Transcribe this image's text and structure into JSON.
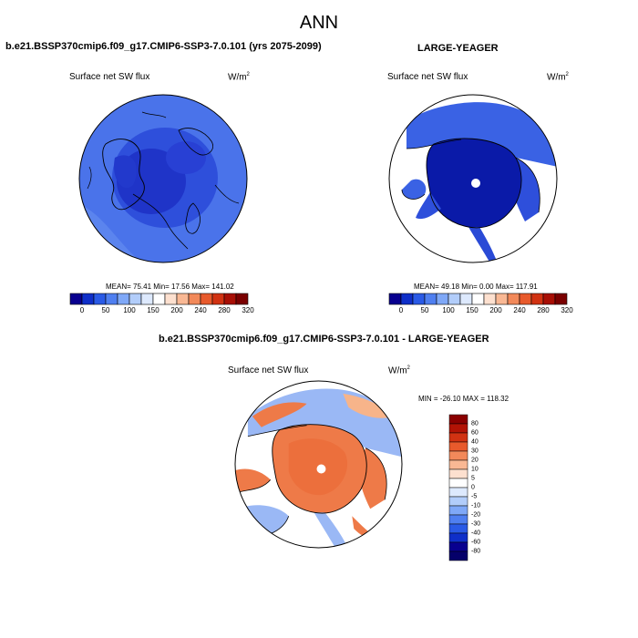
{
  "figure": {
    "season": "ANN",
    "top_left_title": "b.e21.BSSP370cmip6.f09_g17.CMIP6-SSP3-7.0.101 (yrs 2075-2099)",
    "top_right_title": "LARGE-YEAGER",
    "bottom_title": "b.e21.BSSP370cmip6.f09_g17.CMIP6-SSP3-7.0.101 - LARGE-YEAGER"
  },
  "panels": {
    "left": {
      "variable": "Surface net SW flux",
      "units": "W/m",
      "units_sup": "2",
      "stats": "MEAN=  75.41  Min=  17.56  Max= 141.02"
    },
    "right": {
      "variable": "Surface net SW flux",
      "units": "W/m",
      "units_sup": "2",
      "stats": "MEAN=  49.18  Min=   0.00  Max= 117.91"
    },
    "diff": {
      "variable": "Surface net SW flux",
      "units": "W/m",
      "units_sup": "2",
      "stats": "MIN = -26.10 MAX = 118.32"
    }
  },
  "colorbar_abs": {
    "labels": [
      "0",
      "50",
      "100",
      "150",
      "200",
      "240",
      "280",
      "320"
    ],
    "colors": [
      "#08008f",
      "#0f2fc9",
      "#2a5ae6",
      "#4f7ff0",
      "#7fa8f7",
      "#b2cdfa",
      "#dde9fd",
      "#ffffff",
      "#fde0cf",
      "#f9b894",
      "#f2895a",
      "#e85a2c",
      "#d13212",
      "#a80f05",
      "#7a0000"
    ]
  },
  "colorbar_diff": {
    "labels": [
      "80",
      "60",
      "40",
      "30",
      "20",
      "10",
      "5",
      "0",
      "-5",
      "-10",
      "-20",
      "-30",
      "-40",
      "-60",
      "-80"
    ],
    "colors": [
      "#8a0000",
      "#b21305",
      "#d13212",
      "#e85a2c",
      "#f2895a",
      "#f9b894",
      "#fde0cf",
      "#ffffff",
      "#dde9fd",
      "#b2cdfa",
      "#7fa8f7",
      "#4f7ff0",
      "#2a5ae6",
      "#0f2fc9",
      "#08008f",
      "#05006a"
    ]
  },
  "map_colors": {
    "ocean_mid": "#4a73ea",
    "ocean_dark": "#2e4fdb",
    "ocean_deep": "#1f34c8",
    "ice_deep": "#0a1aa8",
    "land": "#ffffff",
    "diff_warm": "#ee7a48",
    "diff_warm_light": "#f7b48a",
    "diff_cool": "#9ab8f5"
  }
}
